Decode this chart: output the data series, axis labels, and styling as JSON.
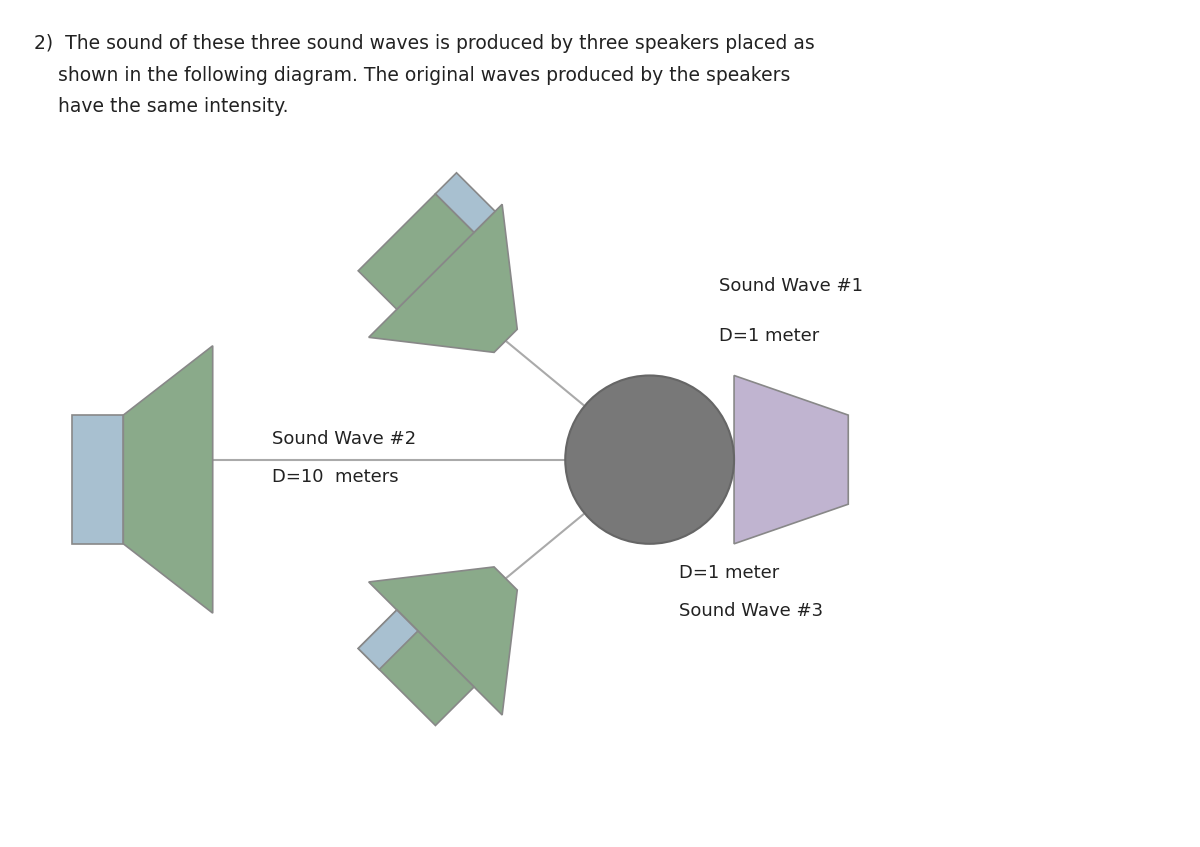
{
  "title_line1": "2)  The sound of these three sound waves is produced by three speakers placed as",
  "title_line2": "    shown in the following diagram. The original waves produced by the speakers",
  "title_line3": "    have the same intensity.",
  "background_color": "#ffffff",
  "box_blue_color": "#a8c0d0",
  "cone_green_color": "#8aaa8a",
  "circle_color": "#787878",
  "cone_right_color": "#c0b4d0",
  "line_color": "#aaaaaa",
  "text_color": "#222222",
  "wave1_label": "Sound Wave #1",
  "wave2_label": "Sound Wave #2",
  "wave3_label": "Sound Wave #3",
  "d1_label": "D=1 meter",
  "d2_label": "D=10  meters",
  "d3_label": "D=1 meter",
  "figsize": [
    12.0,
    8.47
  ]
}
